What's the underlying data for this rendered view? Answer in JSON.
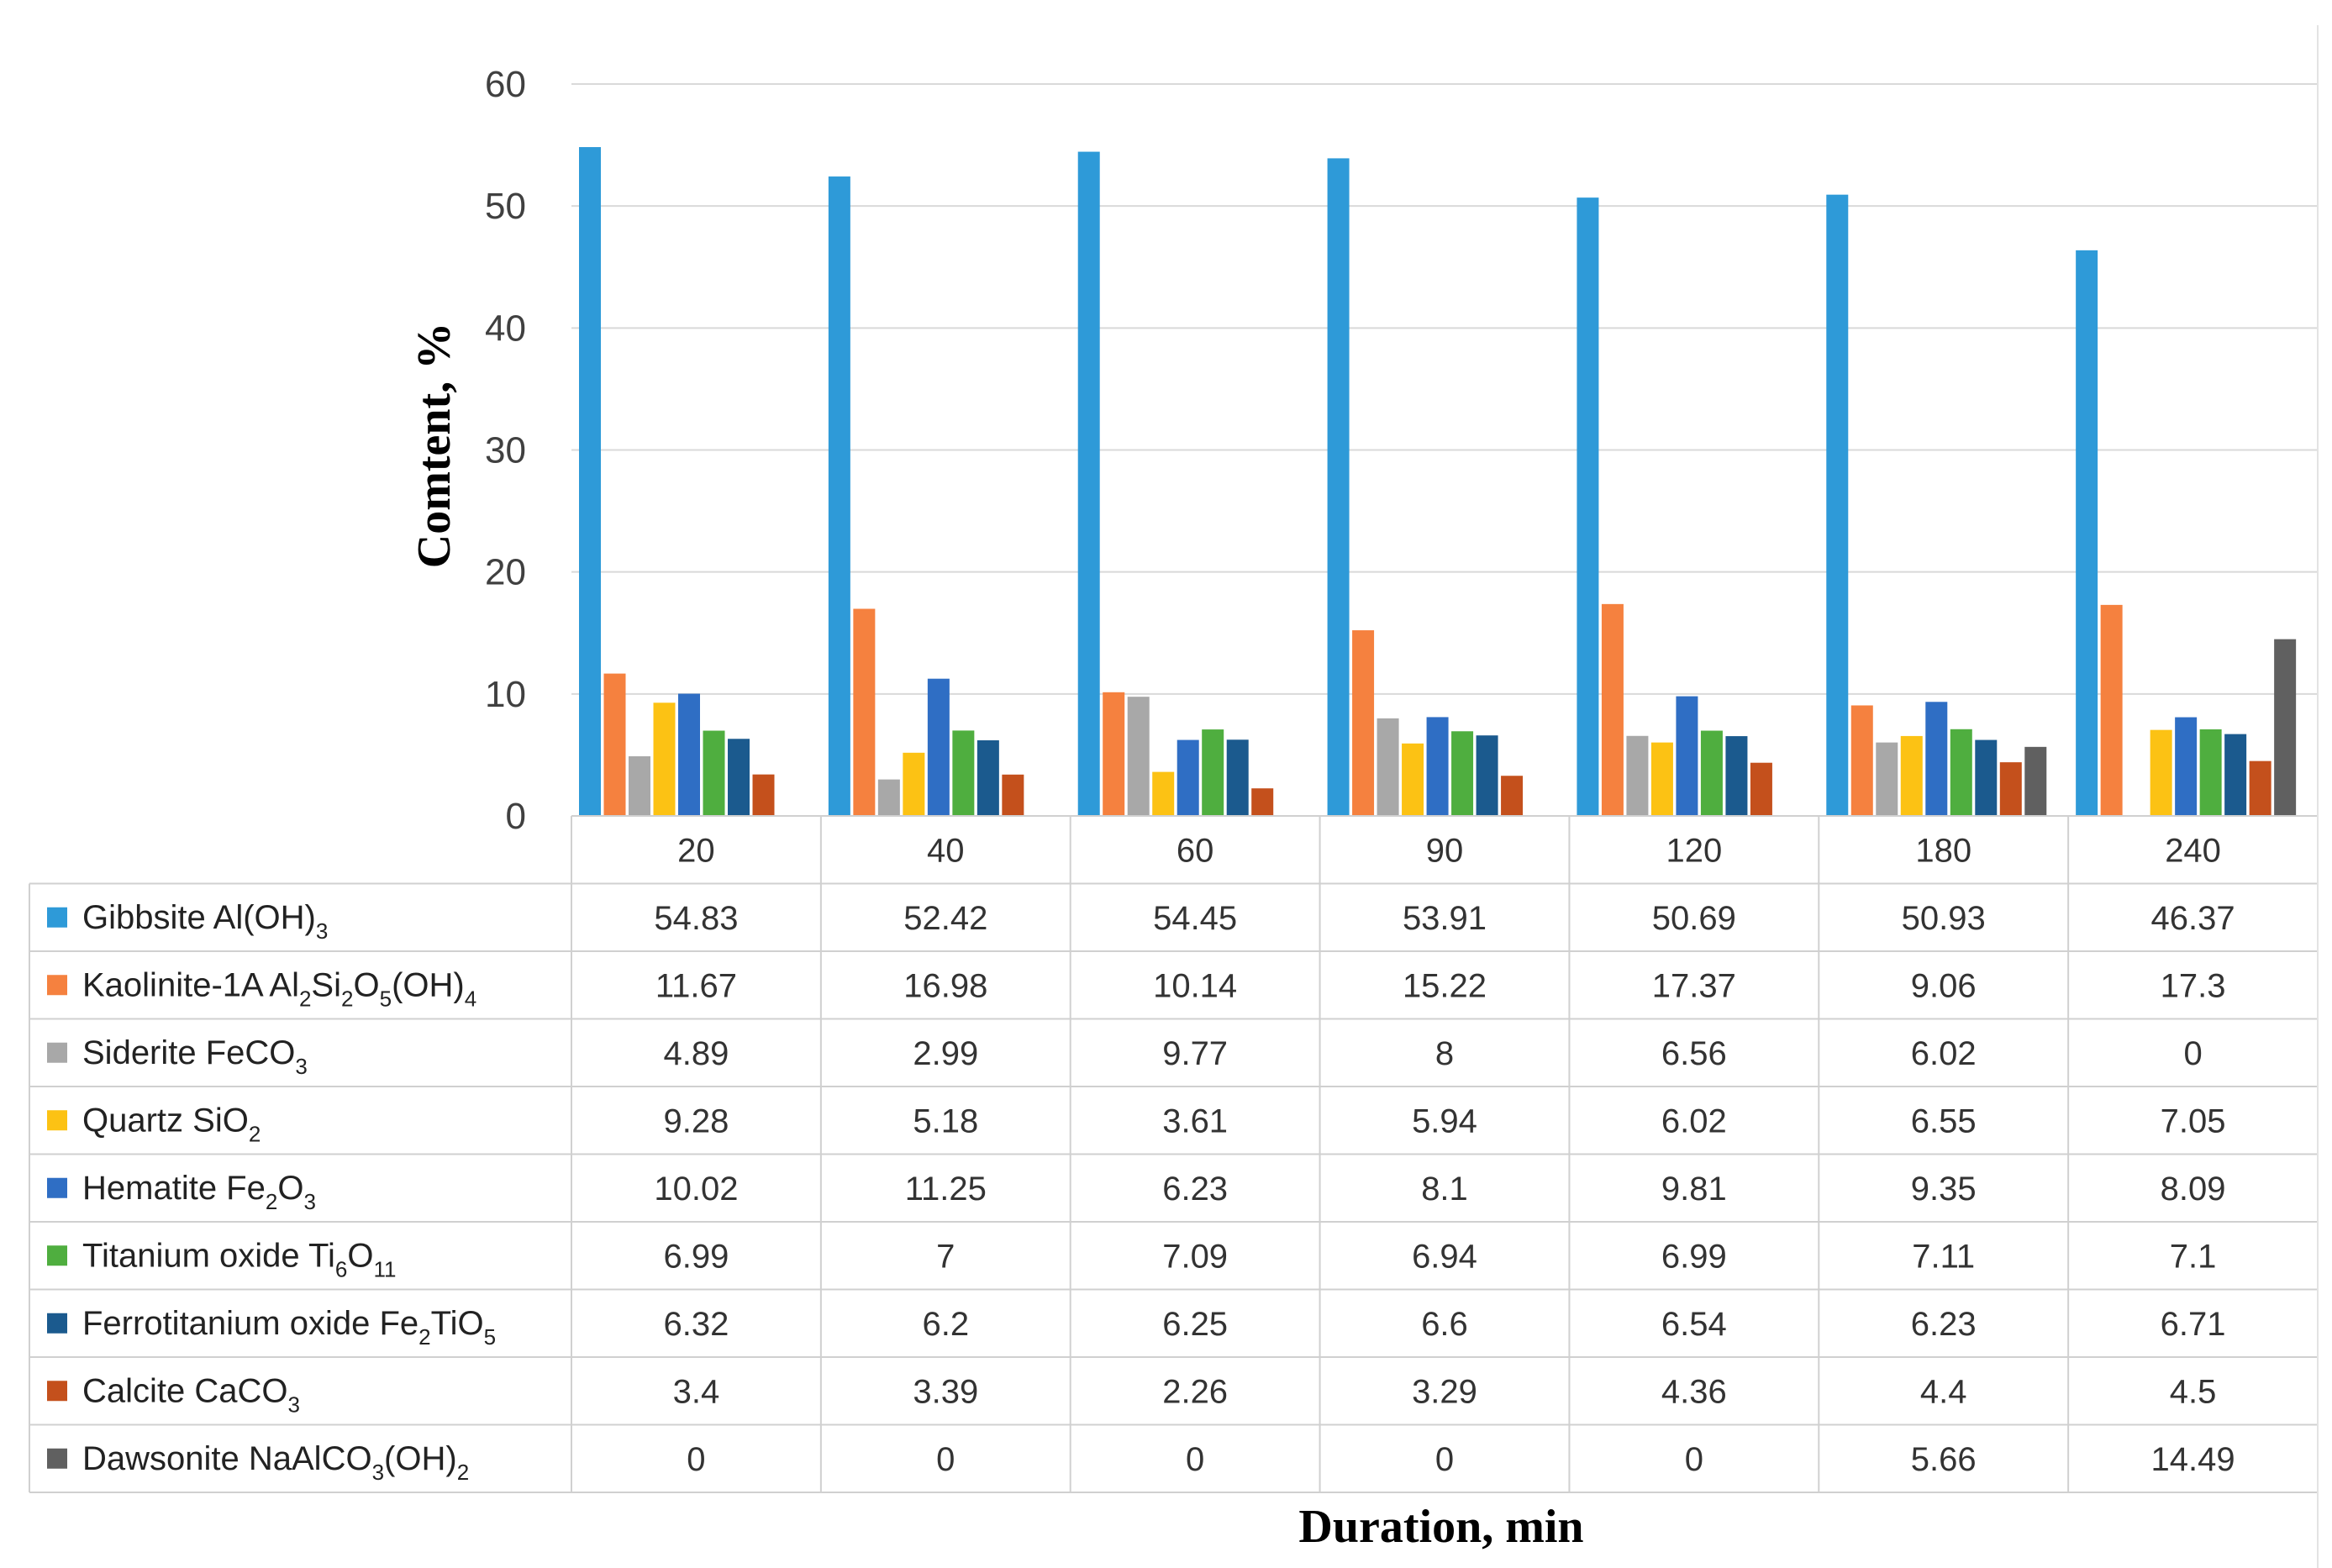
{
  "chart_data": {
    "type": "bar",
    "title": "",
    "xlabel": "Duration, min",
    "ylabel": "Comtent, %",
    "ylim": [
      0,
      60
    ],
    "yticks": [
      0,
      10,
      20,
      30,
      40,
      50,
      60
    ],
    "categories": [
      "20",
      "40",
      "60",
      "90",
      "120",
      "180",
      "240"
    ],
    "grid": true,
    "legend": "data-table-bottom",
    "series": [
      {
        "name": "Gibbsite Al(OH)3",
        "label_parts": [
          [
            "Gibbsite Al(OH)",
            false
          ],
          [
            "3",
            true
          ]
        ],
        "color": "#2e9ad8",
        "values": [
          54.83,
          52.42,
          54.45,
          53.91,
          50.69,
          50.93,
          46.37
        ]
      },
      {
        "name": "Kaolinite-1A Al2Si2O5(OH)4",
        "label_parts": [
          [
            "Kaolinite-1A Al",
            false
          ],
          [
            "2",
            true
          ],
          [
            "Si",
            false
          ],
          [
            "2",
            true
          ],
          [
            "O",
            false
          ],
          [
            "5",
            true
          ],
          [
            "(OH)",
            false
          ],
          [
            "4",
            true
          ]
        ],
        "color": "#f5813f",
        "values": [
          11.67,
          16.98,
          10.14,
          15.22,
          17.37,
          9.06,
          17.3
        ]
      },
      {
        "name": "Siderite FeCO3",
        "label_parts": [
          [
            "Siderite FeCO",
            false
          ],
          [
            "3",
            true
          ]
        ],
        "color": "#a8a8a8",
        "values": [
          4.89,
          2.99,
          9.77,
          8,
          6.56,
          6.02,
          0
        ]
      },
      {
        "name": "Quartz SiO2",
        "label_parts": [
          [
            "Quartz SiO",
            false
          ],
          [
            "2",
            true
          ]
        ],
        "color": "#fcc214",
        "values": [
          9.28,
          5.18,
          3.61,
          5.94,
          6.02,
          6.55,
          7.05
        ]
      },
      {
        "name": "Hematite Fe2O3",
        "label_parts": [
          [
            "Hematite Fe",
            false
          ],
          [
            "2",
            true
          ],
          [
            "O",
            false
          ],
          [
            "3",
            true
          ]
        ],
        "color": "#2f6ec4",
        "values": [
          10.02,
          11.25,
          6.23,
          8.1,
          9.81,
          9.35,
          8.09
        ]
      },
      {
        "name": "Titanium oxide Ti6O11",
        "label_parts": [
          [
            "Titanium oxide Ti",
            false
          ],
          [
            "6",
            true
          ],
          [
            "O",
            false
          ],
          [
            "11",
            true
          ]
        ],
        "color": "#4fae3f",
        "values": [
          6.99,
          7,
          7.09,
          6.94,
          6.99,
          7.11,
          7.1
        ]
      },
      {
        "name": "Ferrotitanium oxide Fe2TiO5",
        "label_parts": [
          [
            "Ferrotitanium oxide Fe",
            false
          ],
          [
            "2",
            true
          ],
          [
            "TiO",
            false
          ],
          [
            "5",
            true
          ]
        ],
        "color": "#1b5a8e",
        "values": [
          6.32,
          6.2,
          6.25,
          6.6,
          6.54,
          6.23,
          6.71
        ]
      },
      {
        "name": "Calcite CaCO3",
        "label_parts": [
          [
            "Calcite CaCO",
            false
          ],
          [
            "3",
            true
          ]
        ],
        "color": "#c4501c",
        "values": [
          3.4,
          3.39,
          2.26,
          3.29,
          4.36,
          4.4,
          4.5
        ]
      },
      {
        "name": "Dawsonite NaAlCO3(OH)2",
        "label_parts": [
          [
            "Dawsonite NaAlCO",
            false
          ],
          [
            "3",
            true
          ],
          [
            "(OH)",
            false
          ],
          [
            "2",
            true
          ]
        ],
        "color": "#606060",
        "values": [
          0,
          0,
          0,
          0,
          0,
          5.66,
          14.49
        ]
      }
    ],
    "table_values": [
      [
        "54.83",
        "52.42",
        "54.45",
        "53.91",
        "50.69",
        "50.93",
        "46.37"
      ],
      [
        "11.67",
        "16.98",
        "10.14",
        "15.22",
        "17.37",
        "9.06",
        "17.3"
      ],
      [
        "4.89",
        "2.99",
        "9.77",
        "8",
        "6.56",
        "6.02",
        "0"
      ],
      [
        "9.28",
        "5.18",
        "3.61",
        "5.94",
        "6.02",
        "6.55",
        "7.05"
      ],
      [
        "10.02",
        "11.25",
        "6.23",
        "8.1",
        "9.81",
        "9.35",
        "8.09"
      ],
      [
        "6.99",
        "7",
        "7.09",
        "6.94",
        "6.99",
        "7.11",
        "7.1"
      ],
      [
        "6.32",
        "6.2",
        "6.25",
        "6.6",
        "6.54",
        "6.23",
        "6.71"
      ],
      [
        "3.4",
        "3.39",
        "2.26",
        "3.29",
        "4.36",
        "4.4",
        "4.5"
      ],
      [
        "0",
        "0",
        "0",
        "0",
        "0",
        "5.66",
        "14.49"
      ]
    ]
  }
}
